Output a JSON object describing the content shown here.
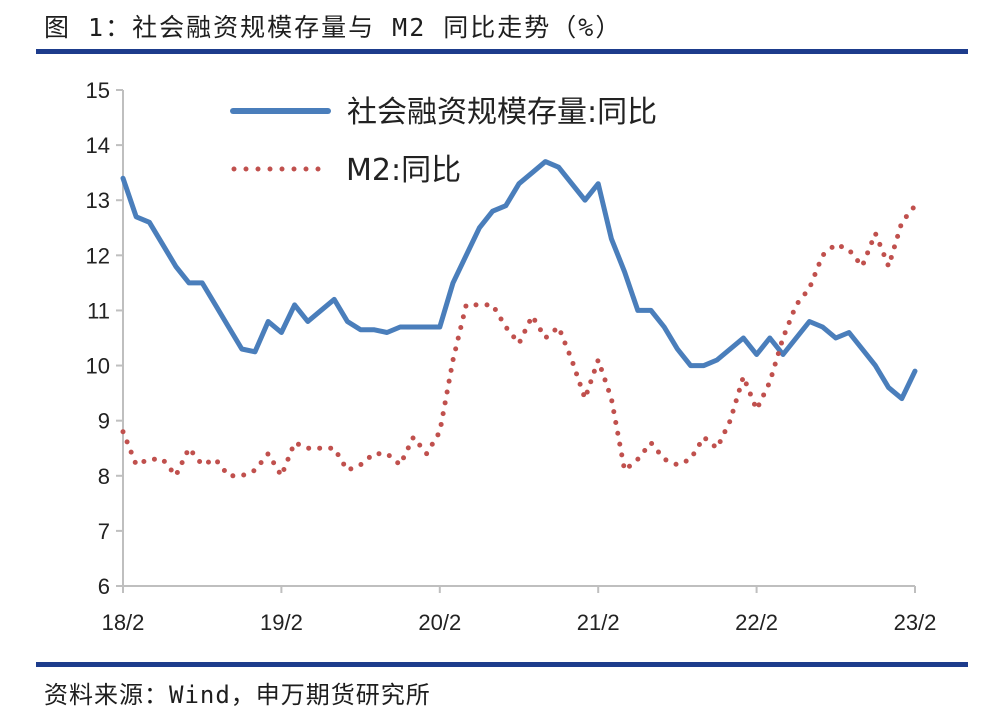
{
  "figure": {
    "title": "图 1：社会融资规模存量与 M2 同比走势（%）",
    "source": "资料来源：Wind，申万期货研究所"
  },
  "colors": {
    "rule": "#1d3c8c",
    "series_social_financing": "#4a7ebb",
    "series_m2": "#c0504d",
    "axis": "#bfbfbf"
  },
  "chart_data": {
    "type": "line",
    "title": "",
    "xlabel": "",
    "ylabel": "",
    "ylim": [
      6,
      15
    ],
    "yticks": [
      6,
      7,
      8,
      9,
      10,
      11,
      12,
      13,
      14,
      15
    ],
    "xlim": [
      "2018-02",
      "2023-02"
    ],
    "xtick_labels": [
      "18/2",
      "19/2",
      "20/2",
      "21/2",
      "22/2",
      "23/2"
    ],
    "grid": false,
    "legend_position": "top-left",
    "x": [
      "2018-02",
      "2018-03",
      "2018-04",
      "2018-05",
      "2018-06",
      "2018-07",
      "2018-08",
      "2018-09",
      "2018-10",
      "2018-11",
      "2018-12",
      "2019-01",
      "2019-02",
      "2019-03",
      "2019-04",
      "2019-05",
      "2019-06",
      "2019-07",
      "2019-08",
      "2019-09",
      "2019-10",
      "2019-11",
      "2019-12",
      "2020-01",
      "2020-02",
      "2020-03",
      "2020-04",
      "2020-05",
      "2020-06",
      "2020-07",
      "2020-08",
      "2020-09",
      "2020-10",
      "2020-11",
      "2020-12",
      "2021-01",
      "2021-02",
      "2021-03",
      "2021-04",
      "2021-05",
      "2021-06",
      "2021-07",
      "2021-08",
      "2021-09",
      "2021-10",
      "2021-11",
      "2021-12",
      "2022-01",
      "2022-02",
      "2022-03",
      "2022-04",
      "2022-05",
      "2022-06",
      "2022-07",
      "2022-08",
      "2022-09",
      "2022-10",
      "2022-11",
      "2022-12",
      "2023-01",
      "2023-02"
    ],
    "series": [
      {
        "name": "社会融资规模存量:同比",
        "style": "solid",
        "values": [
          13.4,
          12.7,
          12.6,
          12.2,
          11.8,
          11.5,
          11.5,
          11.1,
          10.7,
          10.3,
          10.25,
          10.8,
          10.6,
          11.1,
          10.8,
          11.0,
          11.2,
          10.8,
          10.65,
          10.65,
          10.6,
          10.7,
          10.7,
          10.7,
          10.7,
          11.5,
          12.0,
          12.5,
          12.8,
          12.9,
          13.3,
          13.5,
          13.7,
          13.6,
          13.3,
          13.0,
          13.3,
          12.3,
          11.7,
          11.0,
          11.0,
          10.7,
          10.3,
          10.0,
          10.0,
          10.1,
          10.3,
          10.5,
          10.2,
          10.5,
          10.2,
          10.5,
          10.8,
          10.7,
          10.5,
          10.6,
          10.3,
          10.0,
          9.6,
          9.4,
          9.9
        ]
      },
      {
        "name": "M2:同比",
        "style": "dotted",
        "values": [
          8.8,
          8.2,
          8.3,
          8.3,
          8.0,
          8.5,
          8.2,
          8.3,
          8.0,
          8.0,
          8.1,
          8.4,
          8.0,
          8.6,
          8.5,
          8.5,
          8.5,
          8.1,
          8.2,
          8.4,
          8.4,
          8.2,
          8.7,
          8.4,
          8.8,
          10.1,
          11.1,
          11.1,
          11.1,
          10.7,
          10.4,
          10.9,
          10.5,
          10.7,
          10.1,
          9.4,
          10.1,
          9.4,
          8.1,
          8.3,
          8.6,
          8.3,
          8.2,
          8.3,
          8.7,
          8.5,
          9.0,
          9.8,
          9.2,
          9.7,
          10.5,
          11.1,
          11.4,
          12.0,
          12.2,
          12.1,
          11.8,
          12.4,
          11.8,
          12.6,
          12.9
        ]
      }
    ]
  }
}
